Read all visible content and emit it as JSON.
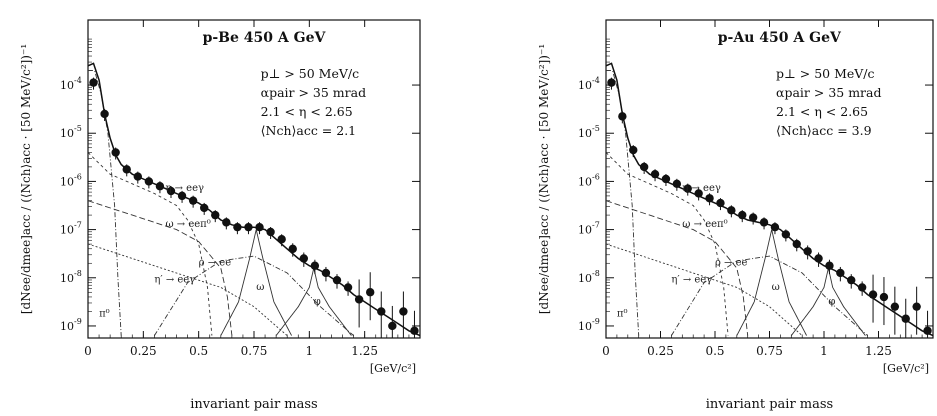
{
  "chart_data": [
    {
      "type": "scatter",
      "title": "p-Be 450 A GeV",
      "annotations": [
        "p⊥ > 50 MeV/c",
        "αpair > 35 mrad",
        "2.1 < η < 2.65",
        "⟨Nch⟩acc = 2.1"
      ],
      "ylabel": "[dNee/dmee]acc / (⟨Nch⟩acc · [50 MeV/c²])⁻¹",
      "xlabel": "invariant pair mass",
      "xunit": "[GeV/c²]",
      "xlim": [
        0,
        1.5
      ],
      "ylim_exp": [
        -9,
        -3
      ],
      "xticks": [
        0,
        0.25,
        0.5,
        0.75,
        1,
        1.25
      ],
      "xtick_labels": [
        "0",
        "0.25",
        "0.5",
        "0.75",
        "1",
        "1.25"
      ],
      "yticks": [
        -4,
        -5,
        -6,
        -7,
        -8,
        -9
      ],
      "ytick_base": "10",
      "ytick_exps": [
        "-4",
        "-5",
        "-6",
        "-7",
        "-8",
        "-9"
      ],
      "log_y": true,
      "curve_labels": [
        {
          "text": "η → eeγ",
          "x": 0.35,
          "y": -6.2
        },
        {
          "text": "ω → eeπ⁰",
          "x": 0.35,
          "y": -6.95
        },
        {
          "text": "ρ → ee",
          "x": 0.5,
          "y": -7.75
        },
        {
          "text": "η′ → eeγ",
          "x": 0.3,
          "y": -8.1
        },
        {
          "text": "ω",
          "x": 0.76,
          "y": -8.25
        },
        {
          "text": "φ",
          "x": 1.02,
          "y": -8.55
        },
        {
          "text": "π⁰",
          "x": 0.05,
          "y": -8.8
        }
      ],
      "series": [
        {
          "name": "data",
          "x": [
            0.025,
            0.075,
            0.125,
            0.175,
            0.225,
            0.275,
            0.325,
            0.375,
            0.425,
            0.475,
            0.525,
            0.575,
            0.625,
            0.675,
            0.725,
            0.775,
            0.825,
            0.875,
            0.925,
            0.975,
            1.025,
            1.075,
            1.125,
            1.175,
            1.225,
            1.275,
            1.325,
            1.375,
            1.425,
            1.475
          ],
          "y": [
            -3.95,
            -4.6,
            -5.4,
            -5.75,
            -5.9,
            -6.0,
            -6.1,
            -6.2,
            -6.3,
            -6.4,
            -6.55,
            -6.7,
            -6.85,
            -6.95,
            -6.95,
            -6.95,
            -7.05,
            -7.2,
            -7.4,
            -7.6,
            -7.75,
            -7.9,
            -8.05,
            -8.2,
            -8.45,
            -8.3,
            -8.7,
            -9.0,
            -8.7,
            -9.1
          ]
        }
      ],
      "total_curve": {
        "x": [
          0.0,
          0.025,
          0.05,
          0.075,
          0.1,
          0.125,
          0.15,
          0.2,
          0.25,
          0.3,
          0.35,
          0.4,
          0.45,
          0.5,
          0.55,
          0.6,
          0.65,
          0.7,
          0.75,
          0.8,
          0.85,
          0.9,
          0.95,
          1.0,
          1.05,
          1.1,
          1.15,
          1.2,
          1.25,
          1.3,
          1.35,
          1.4,
          1.45,
          1.5
        ],
        "y": [
          -3.6,
          -3.55,
          -3.9,
          -4.6,
          -5.1,
          -5.45,
          -5.65,
          -5.85,
          -5.95,
          -6.05,
          -6.15,
          -6.25,
          -6.35,
          -6.45,
          -6.6,
          -6.8,
          -6.9,
          -6.95,
          -6.95,
          -7.0,
          -7.2,
          -7.4,
          -7.6,
          -7.75,
          -7.85,
          -8.0,
          -8.15,
          -8.35,
          -8.5,
          -8.65,
          -8.8,
          -8.95,
          -9.1,
          -9.2
        ]
      },
      "components": [
        {
          "name": "π⁰",
          "x": [
            0.0,
            0.03,
            0.06,
            0.09,
            0.12,
            0.135,
            0.15
          ],
          "y": [
            -3.7,
            -3.7,
            -4.2,
            -5.0,
            -6.5,
            -8.0,
            -9.2
          ],
          "dash": "5,2,1,2"
        },
        {
          "name": "η",
          "x": [
            0.0,
            0.1,
            0.2,
            0.3,
            0.4,
            0.45,
            0.5,
            0.54,
            0.56
          ],
          "y": [
            -5.4,
            -5.85,
            -6.05,
            -6.25,
            -6.5,
            -6.8,
            -7.3,
            -8.2,
            -9.2
          ],
          "dash": "3,3"
        },
        {
          "name": "ω dalitz",
          "x": [
            0.0,
            0.2,
            0.4,
            0.5,
            0.6,
            0.63,
            0.65
          ],
          "y": [
            -6.4,
            -6.7,
            -7.0,
            -7.25,
            -7.8,
            -8.4,
            -9.2
          ],
          "dash": "6,3"
        },
        {
          "name": "η′",
          "x": [
            0.0,
            0.2,
            0.4,
            0.6,
            0.75,
            0.85,
            0.9
          ],
          "y": [
            -7.3,
            -7.6,
            -7.9,
            -8.2,
            -8.6,
            -9.0,
            -9.2
          ],
          "dash": "2,2"
        },
        {
          "name": "ρ",
          "x": [
            0.3,
            0.45,
            0.6,
            0.75,
            0.9,
            1.05,
            1.2
          ],
          "y": [
            -9.2,
            -8.1,
            -7.65,
            -7.55,
            -7.9,
            -8.6,
            -9.2
          ],
          "dash": "5,2,1,2"
        },
        {
          "name": "ω",
          "x": [
            0.6,
            0.68,
            0.73,
            0.76,
            0.79,
            0.84,
            0.92
          ],
          "y": [
            -9.2,
            -8.5,
            -7.6,
            -7.0,
            -7.6,
            -8.5,
            -9.2
          ],
          "dash": "1,0"
        },
        {
          "name": "φ",
          "x": [
            0.85,
            0.95,
            1.0,
            1.02,
            1.04,
            1.09,
            1.19
          ],
          "y": [
            -9.2,
            -8.6,
            -8.2,
            -7.8,
            -8.2,
            -8.6,
            -9.2
          ],
          "dash": "1,0"
        }
      ]
    },
    {
      "type": "scatter",
      "title": "p-Au 450 A GeV",
      "annotations": [
        "p⊥ > 50 MeV/c",
        "αpair > 35 mrad",
        "2.1 < η < 2.65",
        "⟨Nch⟩acc = 3.9"
      ],
      "ylabel": "[dNee/dmee]acc / (⟨Nch⟩acc · [50 MeV/c²])⁻¹",
      "xlabel": "invariant pair mass",
      "xunit": "[GeV/c²]",
      "xlim": [
        0,
        1.5
      ],
      "ylim_exp": [
        -9,
        -3
      ],
      "xticks": [
        0,
        0.25,
        0.5,
        0.75,
        1,
        1.25
      ],
      "xtick_labels": [
        "0",
        "0.25",
        "0.5",
        "0.75",
        "1",
        "1.25"
      ],
      "yticks": [
        -4,
        -5,
        -6,
        -7,
        -8,
        -9
      ],
      "ytick_base": "10",
      "ytick_exps": [
        "-4",
        "-5",
        "-6",
        "-7",
        "-8",
        "-9"
      ],
      "log_y": true,
      "curve_labels": [
        {
          "text": "η → eeγ",
          "x": 0.35,
          "y": -6.2
        },
        {
          "text": "ω → eeπ⁰",
          "x": 0.35,
          "y": -6.95
        },
        {
          "text": "ρ → ee",
          "x": 0.5,
          "y": -7.75
        },
        {
          "text": "η′ → eeγ",
          "x": 0.3,
          "y": -8.1
        },
        {
          "text": "ω",
          "x": 0.76,
          "y": -8.25
        },
        {
          "text": "φ",
          "x": 1.02,
          "y": -8.55
        },
        {
          "text": "π⁰",
          "x": 0.05,
          "y": -8.8
        }
      ],
      "series": [
        {
          "name": "data",
          "x": [
            0.025,
            0.075,
            0.125,
            0.175,
            0.225,
            0.275,
            0.325,
            0.375,
            0.425,
            0.475,
            0.525,
            0.575,
            0.625,
            0.675,
            0.725,
            0.775,
            0.825,
            0.875,
            0.925,
            0.975,
            1.025,
            1.075,
            1.125,
            1.175,
            1.225,
            1.275,
            1.325,
            1.375,
            1.425,
            1.475
          ],
          "y": [
            -3.95,
            -4.65,
            -5.35,
            -5.7,
            -5.85,
            -5.95,
            -6.05,
            -6.15,
            -6.25,
            -6.35,
            -6.45,
            -6.6,
            -6.7,
            -6.75,
            -6.85,
            -6.95,
            -7.1,
            -7.3,
            -7.45,
            -7.6,
            -7.75,
            -7.9,
            -8.05,
            -8.2,
            -8.35,
            -8.4,
            -8.6,
            -8.85,
            -8.6,
            -9.1
          ]
        }
      ],
      "total_curve": {
        "x": [
          0.0,
          0.025,
          0.05,
          0.075,
          0.1,
          0.125,
          0.15,
          0.2,
          0.25,
          0.3,
          0.35,
          0.4,
          0.45,
          0.5,
          0.55,
          0.6,
          0.65,
          0.7,
          0.75,
          0.8,
          0.85,
          0.9,
          0.95,
          1.0,
          1.05,
          1.1,
          1.15,
          1.2,
          1.25,
          1.3,
          1.35,
          1.4,
          1.45,
          1.5
        ],
        "y": [
          -3.6,
          -3.55,
          -3.9,
          -4.6,
          -5.1,
          -5.45,
          -5.65,
          -5.85,
          -5.95,
          -6.05,
          -6.15,
          -6.25,
          -6.35,
          -6.45,
          -6.55,
          -6.7,
          -6.8,
          -6.85,
          -6.9,
          -7.0,
          -7.2,
          -7.4,
          -7.6,
          -7.75,
          -7.85,
          -8.0,
          -8.15,
          -8.35,
          -8.5,
          -8.65,
          -8.8,
          -8.95,
          -9.1,
          -9.2
        ]
      },
      "components": [
        {
          "name": "π⁰",
          "x": [
            0.0,
            0.03,
            0.06,
            0.09,
            0.12,
            0.135,
            0.15
          ],
          "y": [
            -3.7,
            -3.7,
            -4.2,
            -5.0,
            -6.5,
            -8.0,
            -9.2
          ],
          "dash": "5,2,1,2"
        },
        {
          "name": "η",
          "x": [
            0.0,
            0.1,
            0.2,
            0.3,
            0.4,
            0.45,
            0.5,
            0.54,
            0.56
          ],
          "y": [
            -5.4,
            -5.85,
            -6.05,
            -6.25,
            -6.5,
            -6.8,
            -7.3,
            -8.2,
            -9.2
          ],
          "dash": "3,3"
        },
        {
          "name": "ω dalitz",
          "x": [
            0.0,
            0.2,
            0.4,
            0.5,
            0.6,
            0.63,
            0.65
          ],
          "y": [
            -6.4,
            -6.7,
            -7.0,
            -7.25,
            -7.8,
            -8.4,
            -9.2
          ],
          "dash": "6,3"
        },
        {
          "name": "η′",
          "x": [
            0.0,
            0.2,
            0.4,
            0.6,
            0.75,
            0.85,
            0.9
          ],
          "y": [
            -7.3,
            -7.6,
            -7.9,
            -8.2,
            -8.6,
            -9.0,
            -9.2
          ],
          "dash": "2,2"
        },
        {
          "name": "ρ",
          "x": [
            0.3,
            0.45,
            0.6,
            0.75,
            0.9,
            1.05,
            1.2
          ],
          "y": [
            -9.2,
            -8.1,
            -7.65,
            -7.55,
            -7.9,
            -8.6,
            -9.2
          ],
          "dash": "5,2,1,2"
        },
        {
          "name": "ω",
          "x": [
            0.6,
            0.68,
            0.73,
            0.76,
            0.79,
            0.84,
            0.92
          ],
          "y": [
            -9.2,
            -8.5,
            -7.6,
            -7.0,
            -7.6,
            -8.5,
            -9.2
          ],
          "dash": "1,0"
        },
        {
          "name": "φ",
          "x": [
            0.85,
            0.95,
            1.0,
            1.02,
            1.04,
            1.09,
            1.19
          ],
          "y": [
            -9.2,
            -8.6,
            -8.2,
            -7.8,
            -8.2,
            -8.6,
            -9.2
          ],
          "dash": "1,0"
        }
      ]
    }
  ]
}
